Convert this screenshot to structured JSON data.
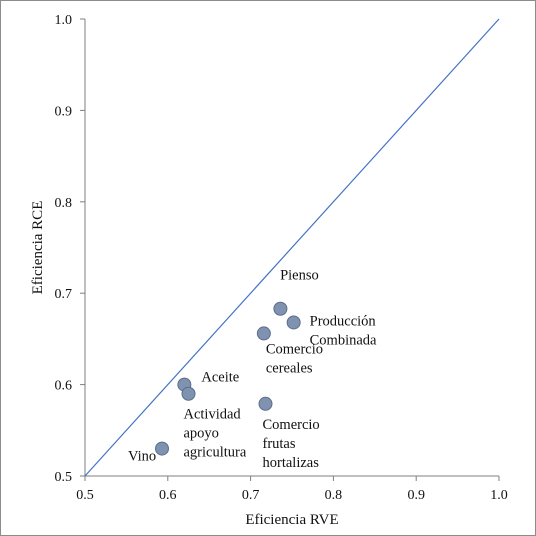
{
  "chart_data": {
    "type": "scatter",
    "title": "",
    "xlabel": "Eficiencia  RVE",
    "ylabel": "Eficiencia  RCE",
    "xlim": [
      0.5,
      1.0
    ],
    "ylim": [
      0.5,
      1.0
    ],
    "xticks": [
      "0.5",
      "0.6",
      "0.7",
      "0.8",
      "0.9",
      "1.0"
    ],
    "yticks": [
      "0.5",
      "0.6",
      "0.7",
      "0.8",
      "0.9",
      "1.0"
    ],
    "grid": false,
    "reference_line": {
      "from": [
        0.5,
        0.5
      ],
      "to": [
        1.0,
        1.0
      ],
      "color": "#4472c4"
    },
    "marker_color": "#7f93b0",
    "marker_stroke": "#5a6e8c",
    "points": [
      {
        "label": "Pienso",
        "lines": [
          "Pienso"
        ],
        "x": 0.736,
        "y": 0.683
      },
      {
        "label": "Producción Combinada",
        "lines": [
          "Producción",
          "Combinada"
        ],
        "x": 0.752,
        "y": 0.668
      },
      {
        "label": "Comercio cereales",
        "lines": [
          "Comercio",
          "cereales"
        ],
        "x": 0.716,
        "y": 0.656
      },
      {
        "label": "Aceite",
        "lines": [
          "Aceite"
        ],
        "x": 0.62,
        "y": 0.6
      },
      {
        "label": "Actividad apoyo agricultura",
        "lines": [
          "Actividad",
          "apoyo",
          "agricultura"
        ],
        "x": 0.625,
        "y": 0.59
      },
      {
        "label": "Comercio frutas hortalizas",
        "lines": [
          "Comercio",
          "frutas",
          "hortalizas"
        ],
        "x": 0.718,
        "y": 0.579
      },
      {
        "label": "Vino",
        "lines": [
          "Vino"
        ],
        "x": 0.593,
        "y": 0.53
      }
    ]
  }
}
